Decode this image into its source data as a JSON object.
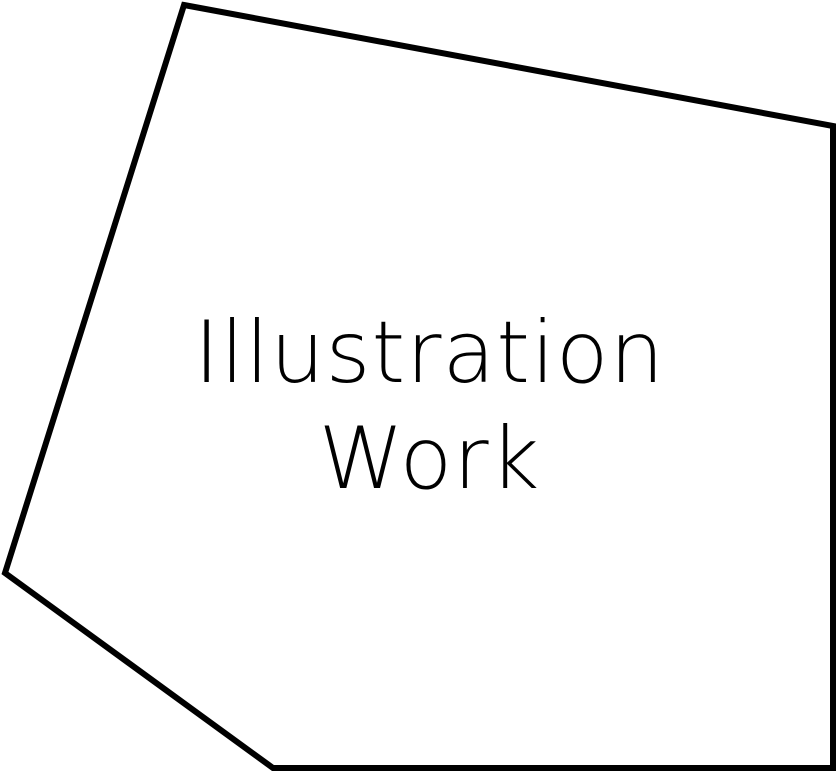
{
  "tile": {
    "label_line1": "Illustration",
    "label_line2": "Work",
    "border_color": "#000000",
    "fill_color": "#ffffff"
  }
}
